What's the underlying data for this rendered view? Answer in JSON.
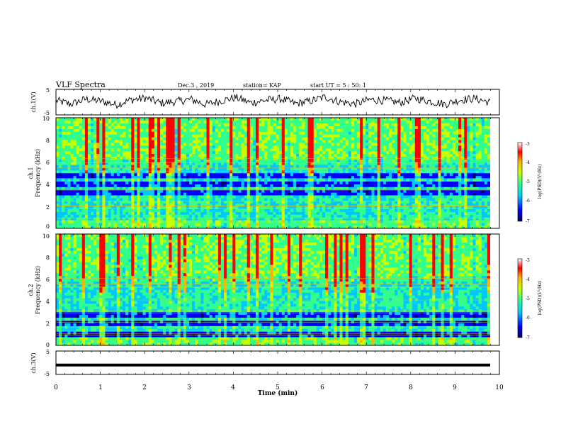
{
  "header": {
    "title": "VLF Spectra",
    "date": "Dec.3 , 2019",
    "station": "station= KAP",
    "start": "start UT = 5 : 50: 1"
  },
  "colors": {
    "colormap": [
      "#00006a",
      "#0000ff",
      "#00c8ff",
      "#30ff8c",
      "#c8ff00",
      "#ffb400",
      "#ff0000",
      "#ffffff"
    ],
    "trace": "#000000"
  },
  "chart_data": [
    {
      "type": "line",
      "panel": "ch1-waveform",
      "ylabel": "ch.1(V)",
      "ylim": [
        -5,
        5
      ],
      "yticks": [
        "5",
        "-5"
      ],
      "series": [
        {
          "values": [
            0.6,
            -0.8,
            1.2,
            0.4,
            -1.0,
            0.9,
            1.6,
            -0.4,
            0.2,
            1.1,
            -0.9,
            0.5,
            1.8,
            -0.3,
            0.7,
            1.3,
            -0.6,
            0.4,
            2.0,
            0.1,
            -0.7,
            1.0,
            0.6,
            -0.2,
            1.5,
            0.3,
            -0.8,
            0.9,
            1.4,
            -0.1
          ]
        }
      ]
    },
    {
      "type": "heatmap",
      "panel": "ch1-spectrogram",
      "ylabel": "ch.1\nFrequency (kHz)",
      "ylim": [
        0,
        10
      ],
      "yticks": [
        "0",
        "2",
        "4",
        "6",
        "8",
        "10"
      ],
      "colorbar": {
        "label": "log(PSD)(V²/Hz)",
        "range": [
          -7,
          -3
        ],
        "ticks": [
          "-3",
          "-4",
          "-5",
          "-6",
          "-7"
        ]
      }
    },
    {
      "type": "heatmap",
      "panel": "ch2-spectrogram",
      "ylabel": "ch.2\nFrequency (kHz)",
      "ylim": [
        0,
        10
      ],
      "yticks": [
        "0",
        "2",
        "4",
        "6",
        "8",
        "10"
      ],
      "colorbar": {
        "label": "log(PSD)(V²/Hz)",
        "range": [
          -7,
          -3
        ],
        "ticks": [
          "-3",
          "-4",
          "-5",
          "-6",
          "-7"
        ]
      }
    },
    {
      "type": "line",
      "panel": "ch3-waveform",
      "ylabel": "ch.3(V)",
      "ylim": [
        -5,
        5
      ],
      "yticks": [
        "5",
        "-5"
      ],
      "series": [
        {
          "values": [
            -1,
            -1,
            -1,
            -1,
            -1,
            -1,
            -1,
            -1,
            -1,
            -1,
            -1,
            -1,
            -1,
            -1,
            -1,
            -1,
            -1,
            -1,
            -1,
            -1
          ]
        }
      ]
    }
  ],
  "xaxis": {
    "xlabel": "Time (min)",
    "xlim": [
      0,
      10
    ],
    "ticks": [
      "0",
      "1",
      "2",
      "3",
      "4",
      "5",
      "6",
      "7",
      "8",
      "9",
      "10"
    ]
  }
}
